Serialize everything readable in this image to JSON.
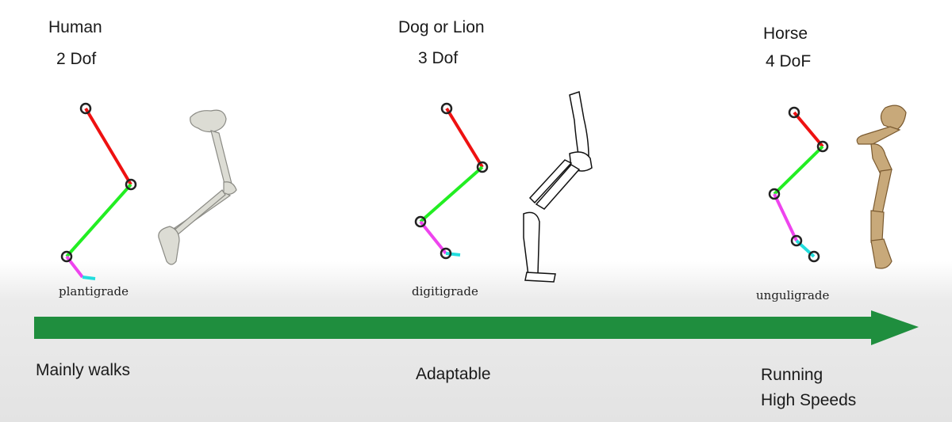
{
  "columns": [
    {
      "animal": "Human",
      "dof": "2 Dof",
      "gait": "plantigrade",
      "trait": "Mainly walks",
      "trait2": ""
    },
    {
      "animal": "Dog or Lion",
      "dof": "3 Dof",
      "gait": "digitigrade",
      "trait": "Adaptable",
      "trait2": ""
    },
    {
      "animal": "Horse",
      "dof": "4 DoF",
      "gait": "unguligrade",
      "trait": "Running",
      "trait2": "High Speeds"
    }
  ],
  "colors": {
    "segment1": "#ee1111",
    "segment2": "#22ee22",
    "segment3": "#ee44ee",
    "segment4": "#22dddd",
    "arrow": "#1f8e3e",
    "bone_human": "#dcdcd4",
    "bone_horse": "#c8a97a"
  },
  "icons": [
    "human-leg-skeleton-icon",
    "dog-leg-skeleton-icon",
    "horse-leg-skeleton-icon"
  ]
}
